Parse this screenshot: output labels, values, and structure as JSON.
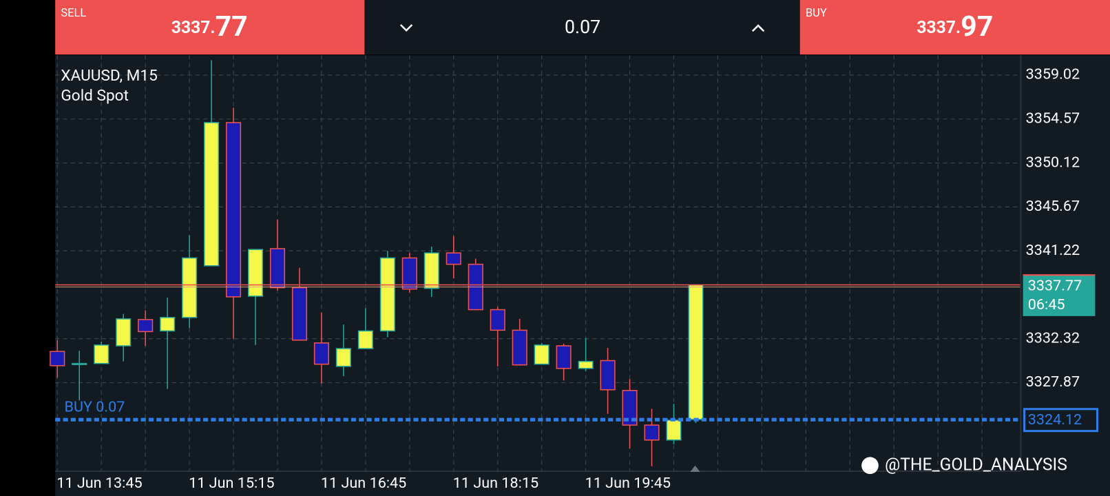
{
  "header": {
    "sell_label": "SELL",
    "sell_price_main": "3337.",
    "sell_price_big": "77",
    "lot": "0.07",
    "buy_label": "BUY",
    "buy_price_main": "3337.",
    "buy_price_big": "97"
  },
  "chart_data": {
    "type": "candlestick",
    "title": "XAUUSD, M15",
    "subtitle": "Gold Spot",
    "categories": [
      "11 Jun 13:45",
      null,
      null,
      null,
      null,
      null,
      "11 Jun 15:15",
      null,
      null,
      null,
      null,
      null,
      "11 Jun 16:45",
      null,
      null,
      null,
      null,
      null,
      "11 Jun 18:15",
      null,
      null,
      null,
      null,
      null,
      "11 Jun 19:45",
      null,
      null,
      null,
      null,
      null
    ],
    "open": [
      3331.03,
      3329.74,
      3329.81,
      3331.6,
      3334.26,
      3333.11,
      3334.47,
      3339.71,
      3354.21,
      3336.63,
      3341.44,
      3337.49,
      3331.89,
      3329.52,
      3331.32,
      3333.11,
      3340.5,
      3337.42,
      3341.01,
      3339.86,
      3335.26,
      3333.18,
      3329.74,
      3331.6,
      3329.31,
      3330.1,
      3327.08,
      3323.57,
      3322.06,
      3324.14
    ],
    "high": [
      3332.18,
      3331.1,
      3332.03,
      3334.83,
      3335.19,
      3336.48,
      3342.8,
      3360.53,
      3355.72,
      3341.36,
      3344.38,
      3339.5,
      3334.98,
      3333.76,
      3335.41,
      3341.22,
      3341.01,
      3341.65,
      3342.73,
      3340.43,
      3335.55,
      3334.33,
      3331.89,
      3331.82,
      3332.39,
      3331.39,
      3328.23,
      3325.22,
      3325.72,
      3337.85
    ],
    "low": [
      3328.37,
      3326.08,
      3329.81,
      3330.02,
      3331.6,
      3327.23,
      3333.4,
      3339.71,
      3332.32,
      3331.68,
      3337.2,
      3332.18,
      3327.8,
      3328.52,
      3331.32,
      3332.47,
      3336.99,
      3336.56,
      3338.42,
      3335.26,
      3329.52,
      3329.59,
      3329.74,
      3328.09,
      3329.02,
      3324.71,
      3321.2,
      3319.4,
      3321.63,
      3323.78
    ],
    "close": [
      3329.59,
      3329.81,
      3331.68,
      3334.33,
      3333.04,
      3334.47,
      3340.5,
      3354.21,
      3336.56,
      3341.36,
      3337.49,
      3332.18,
      3329.74,
      3331.32,
      3333.11,
      3340.5,
      3337.35,
      3341.01,
      3339.86,
      3335.26,
      3333.18,
      3329.67,
      3331.68,
      3329.31,
      3330.02,
      3327.15,
      3323.57,
      3322.06,
      3324.07,
      3337.77
    ],
    "up_color": "#f3f84a",
    "down_color": "#1c1cb4",
    "ylim": [
      3318.9,
      3361.03
    ],
    "yticks": [
      3359.02,
      3354.57,
      3350.12,
      3345.67,
      3341.22,
      3332.32,
      3327.87
    ],
    "grid": true,
    "price_line": {
      "value": 3337.77,
      "time": "06:45",
      "color": "#26a69a"
    },
    "position_line": {
      "label": "BUY 0.07",
      "value": 3324.12,
      "color": "#2f7de8"
    }
  },
  "watermark": "@THE_GOLD_ANALYSIS"
}
